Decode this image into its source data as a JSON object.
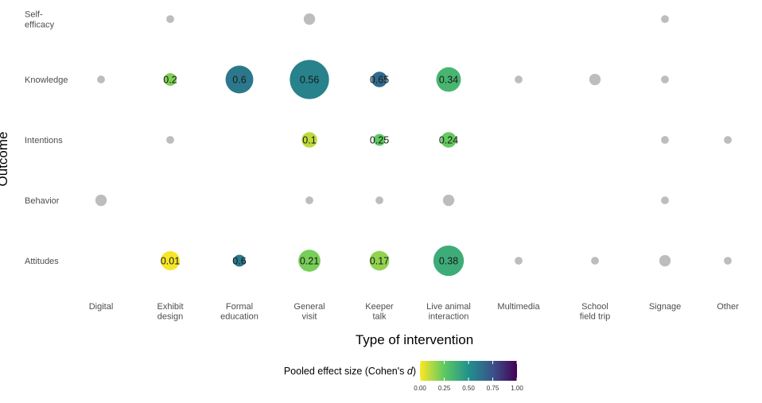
{
  "chart_data": {
    "type": "scatter",
    "xlabel": "Type of intervention",
    "ylabel": "Outcome",
    "x_categories": [
      [
        "Digital"
      ],
      [
        "Exhibit",
        "design"
      ],
      [
        "Formal",
        "education"
      ],
      [
        "General",
        "visit"
      ],
      [
        "Keeper",
        "talk"
      ],
      [
        "Live animal",
        "interaction"
      ],
      [
        "Multimedia"
      ],
      [
        "School",
        "field trip"
      ],
      [
        "Signage"
      ],
      [
        "Other"
      ]
    ],
    "y_categories": [
      [
        "Self-",
        "efficacy"
      ],
      [
        "Knowledge"
      ],
      [
        "Intentions"
      ],
      [
        "Behavior"
      ],
      [
        "Attitudes"
      ]
    ],
    "size_encoding": "relative bubble size",
    "color_encoding": "Pooled effect size (Cohen's d); gray = no pooled estimate",
    "no_estimate_color": "#bdbdbd",
    "colorscale": [
      "#fde725",
      "#5ec962",
      "#21918c",
      "#3b528b",
      "#440154"
    ],
    "legend": {
      "title": "Pooled effect size (Cohen's ",
      "title_italic": "d",
      "title_end": ")",
      "ticks": [
        "0.00",
        "0.25",
        "0.50",
        "0.75",
        "1.00"
      ],
      "range": [
        0,
        1
      ],
      "position": "bottom-center"
    },
    "points": [
      {
        "x": 1,
        "y": 0,
        "size": 1.5,
        "effect": null
      },
      {
        "x": 3,
        "y": 0,
        "size": 3.2,
        "effect": null
      },
      {
        "x": 8,
        "y": 0,
        "size": 1.5,
        "effect": null
      },
      {
        "x": 0,
        "y": 1,
        "size": 1.5,
        "effect": null
      },
      {
        "x": 1,
        "y": 1,
        "size": 4.0,
        "effect": 0.2,
        "label": "0.2"
      },
      {
        "x": 2,
        "y": 1,
        "size": 19.0,
        "effect": 0.6,
        "label": "0.6"
      },
      {
        "x": 3,
        "y": 1,
        "size": 38.0,
        "effect": 0.56,
        "label": "0.56"
      },
      {
        "x": 4,
        "y": 1,
        "size": 6.0,
        "effect": 0.65,
        "label": "0.65"
      },
      {
        "x": 5,
        "y": 1,
        "size": 15.0,
        "effect": 0.34,
        "label": "0.34"
      },
      {
        "x": 6,
        "y": 1,
        "size": 1.5,
        "effect": null
      },
      {
        "x": 7,
        "y": 1,
        "size": 3.2,
        "effect": null
      },
      {
        "x": 8,
        "y": 1,
        "size": 1.5,
        "effect": null
      },
      {
        "x": 1,
        "y": 2,
        "size": 1.5,
        "effect": null
      },
      {
        "x": 3,
        "y": 2,
        "size": 6.0,
        "effect": 0.1,
        "label": "0.1"
      },
      {
        "x": 4,
        "y": 2,
        "size": 3.5,
        "effect": 0.25,
        "label": "0.25"
      },
      {
        "x": 5,
        "y": 2,
        "size": 6.0,
        "effect": 0.24,
        "label": "0.24"
      },
      {
        "x": 8,
        "y": 2,
        "size": 1.5,
        "effect": null
      },
      {
        "x": 9,
        "y": 2,
        "size": 1.5,
        "effect": null
      },
      {
        "x": 0,
        "y": 3,
        "size": 3.2,
        "effect": null
      },
      {
        "x": 3,
        "y": 3,
        "size": 1.5,
        "effect": null
      },
      {
        "x": 4,
        "y": 3,
        "size": 1.5,
        "effect": null
      },
      {
        "x": 5,
        "y": 3,
        "size": 3.2,
        "effect": null
      },
      {
        "x": 8,
        "y": 3,
        "size": 1.5,
        "effect": null
      },
      {
        "x": 1,
        "y": 4,
        "size": 9.0,
        "effect": 0.01,
        "label": "0.01"
      },
      {
        "x": 2,
        "y": 4,
        "size": 3.5,
        "effect": 0.6,
        "label": "0.6"
      },
      {
        "x": 3,
        "y": 4,
        "size": 12.0,
        "effect": 0.21,
        "label": "0.21"
      },
      {
        "x": 4,
        "y": 4,
        "size": 9.5,
        "effect": 0.17,
        "label": "0.17"
      },
      {
        "x": 5,
        "y": 4,
        "size": 23.0,
        "effect": 0.38,
        "label": "0.38"
      },
      {
        "x": 6,
        "y": 4,
        "size": 1.5,
        "effect": null
      },
      {
        "x": 7,
        "y": 4,
        "size": 1.5,
        "effect": null
      },
      {
        "x": 8,
        "y": 4,
        "size": 3.2,
        "effect": null
      },
      {
        "x": 9,
        "y": 4,
        "size": 1.5,
        "effect": null
      }
    ]
  }
}
